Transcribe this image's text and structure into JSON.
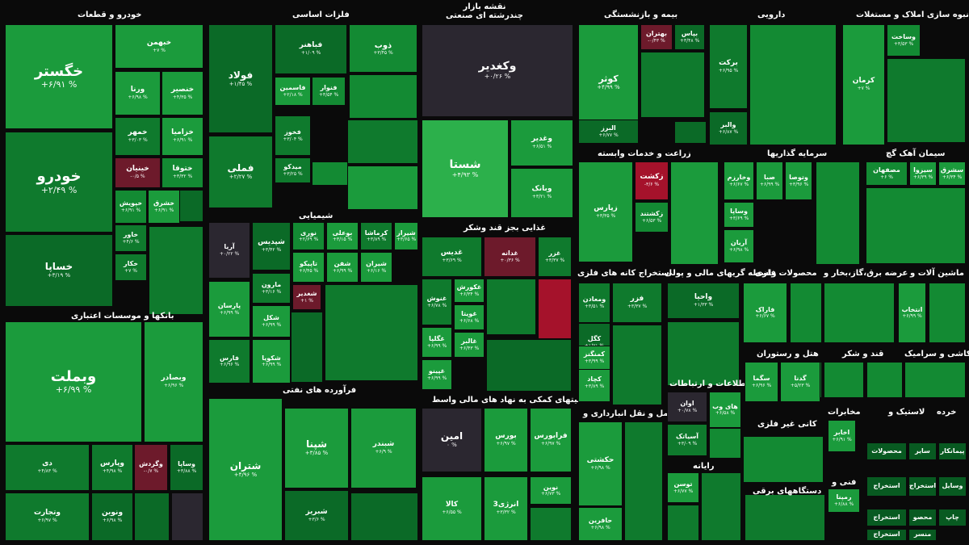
{
  "header": {
    "title": "نقشه بازار",
    "subtitle": "چندرشته ای صنعتی"
  },
  "sectors": {
    "auto": "خودرو و قطعات",
    "metals": "فلزات اساسی",
    "insurance": "بیمه و بازنشستگی",
    "pharma": "دارویی",
    "realestate": "انبوه سازی املاک و مستغلات",
    "agri": "زراعت و خدمات وابسته",
    "invest": "سرمایه گذاریها",
    "cement": "سیمان آهک گچ",
    "chemical": "شیمیایی",
    "food": "غذایی بجز قند وشکر",
    "mining": "استخراج کانه های فلزی",
    "finance": "واسطه گریهای مالی و پولی",
    "metalproducts": "محصولات فلزی",
    "power": "عرضه برق،گاز،بخار و",
    "machinery": "ماشین آلات و",
    "banks": "بانکها و موسسات اعتباری",
    "hotel": "هتل و رستوران",
    "sugar": "قند و شکر",
    "ceramic": "کاشی و سرامیک",
    "ict": "اطلاعات و ارتباطات",
    "refinery": "فرآورده های نفتی",
    "financeaux": "فعالیتهای کمکی به نهاد های مالی واسط",
    "transport": "حمل و نقل انبارداری و",
    "nonmetal": "کانی غیر فلزی",
    "computer": "رایانه",
    "electric": "دستگاههای برقی",
    "telecom": "مخابرات",
    "tire": "لاستیک و",
    "retail": "خرده",
    "tech": "فنی و"
  },
  "cells": {
    "khegostar": {
      "sym": "خگستر",
      "pct": "+۶/۹۱ %"
    },
    "khodro": {
      "sym": "خودرو",
      "pct": "+۲/۴۹ %"
    },
    "khsapa": {
      "sym": "خساپا",
      "pct": "+۳/۱۹ %"
    },
    "khbahman": {
      "sym": "خبهمن",
      "pct": "+۷ %"
    },
    "vrana": {
      "sym": "ورنا",
      "pct": "+۶/۹۸ %"
    },
    "khensir": {
      "sym": "خنصیر",
      "pct": "+۴/۳۵ %"
    },
    "khmehr": {
      "sym": "خمهر",
      "pct": "+۳/۰۳ %"
    },
    "khazamia": {
      "sym": "خزامیا",
      "pct": "+۶/۹۱ %"
    },
    "khinian": {
      "sym": "خینیان",
      "pct": "-۰/۵ %"
    },
    "khtoga": {
      "sym": "ختوقا",
      "pct": "+۳/۳۲ %"
    },
    "khpoyesh": {
      "sym": "خپویش",
      "pct": "+۶/۹۱ %"
    },
    "khsharq": {
      "sym": "خشرق",
      "pct": "+۶/۹۱ %"
    },
    "khavar": {
      "sym": "خاور",
      "pct": "+۴/۶ %"
    },
    "khkar": {
      "sym": "خکار",
      "pct": "+۷ %"
    },
    "vbmellat": {
      "sym": "وبملت",
      "pct": "+۶/۹۹ %"
    },
    "vbsader": {
      "sym": "وبصادر",
      "pct": "+۶/۹۶ %"
    },
    "dey": {
      "sym": "دی",
      "pct": "+۴/۸۳ %"
    },
    "vparis": {
      "sym": "وپارس",
      "pct": "+۴/۹۸ %"
    },
    "vgardesh": {
      "sym": "وگردش",
      "pct": "-۰/۷ %"
    },
    "vsapa": {
      "sym": "وساپا",
      "pct": "+۳/۸۸ %"
    },
    "vtejarat": {
      "sym": "وتجارت",
      "pct": "+۶/۹۷ %"
    },
    "vnovin": {
      "sym": "ونوین",
      "pct": "+۶/۹۸ %"
    },
    "foolad": {
      "sym": "فولاد",
      "pct": "+۱/۴۵ %"
    },
    "femli": {
      "sym": "فملی",
      "pct": "+۲/۲۷ %"
    },
    "fbahonar": {
      "sym": "فباهنر",
      "pct": "+۱/۰۹ %"
    },
    "zob": {
      "sym": "ذوب",
      "pct": "+۳/۴۵ %"
    },
    "fsamin": {
      "sym": "فاسمین",
      "pct": "+۲/۱۸ %"
    },
    "fnavar": {
      "sym": "فنوار",
      "pct": "+۳/۵۴ %"
    },
    "fkhoz": {
      "sym": "فخوز",
      "pct": "+۳/۰۴ %"
    },
    "fmidko": {
      "sym": "میدکو",
      "pct": "+۳/۲۵ %"
    },
    "vghadir": {
      "sym": "وکغدیر",
      "pct": "+۰/۲۶ %"
    },
    "shasta": {
      "sym": "شستا",
      "pct": "+۴/۹۳ %"
    },
    "vghadir2": {
      "sym": "وغدیر",
      "pct": "+۶/۵۱ %"
    },
    "vbank": {
      "sym": "وبانک",
      "pct": "+۳/۲۱ %"
    },
    "kowsar": {
      "sym": "کوثر",
      "pct": "+۴/۹۹ %"
    },
    "bahtaran": {
      "sym": "بهتران",
      "pct": "-۰/۴۳ %"
    },
    "bpas": {
      "sym": "بپاس",
      "pct": "+۳/۴۸ %"
    },
    "valborz": {
      "sym": "البرز",
      "pct": "+۶/۷۷ %"
    },
    "vsahab": {
      "sym": "وساخت",
      "pct": "+۳/۵۳ %"
    },
    "kerman": {
      "sym": "کرمان",
      "pct": "+۷ %"
    },
    "barkat": {
      "sym": "برکت",
      "pct": "+۶/۹۵ %"
    },
    "valbar": {
      "sym": "والبر",
      "pct": "+۶/۸۷ %"
    },
    "zagros": {
      "sym": "زپارس",
      "pct": "+۳/۳۵ %"
    },
    "zkesht": {
      "sym": "زکشت",
      "pct": "-۳/۶ %"
    },
    "zkeshtand": {
      "sym": "زکشتند",
      "pct": "+۶/۵۳ %"
    },
    "vkharazm": {
      "sym": "وخارزم",
      "pct": "+۶/۶۷ %"
    },
    "vsepa": {
      "sym": "صبا",
      "pct": "+۶/۹۹ %"
    },
    "vtosee": {
      "sym": "وتوصا",
      "pct": "+۳/۹۶ %"
    },
    "vsapa2": {
      "sym": "وساپا",
      "pct": "+۳/۶۹ %"
    },
    "arian": {
      "sym": "آریان",
      "pct": "+۶/۹۸ %"
    },
    "smashhad": {
      "sym": "سشرق",
      "pct": "+۶/۳۴ %"
    },
    "sbiza": {
      "sym": "سیزوا",
      "pct": "+۶/۳۹ %"
    },
    "sfahan": {
      "sym": "مصفهان",
      "pct": "+۶ %"
    },
    "arya": {
      "sym": "آریا",
      "pct": "+۰/۲۲ %"
    },
    "shbandar": {
      "sym": "شپدیس",
      "pct": "+۳/۴۲ %"
    },
    "nouri": {
      "sym": "نوری",
      "pct": "+۲/۶۹ %"
    },
    "bualiz": {
      "sym": "بوعلی",
      "pct": "+۳/۱۵ %"
    },
    "kermasha": {
      "sym": "کرماشا",
      "pct": "+۳/۸۹ %"
    },
    "shiraz": {
      "sym": "شیراز",
      "pct": "+۳/۶۵ %"
    },
    "paris": {
      "sym": "پارسان",
      "pct": "+۶/۹۹ %"
    },
    "marun": {
      "sym": "مارون",
      "pct": "+۳/۱۶ %"
    },
    "tapiko": {
      "sym": "تاپیکو",
      "pct": "+۶/۴۵ %"
    },
    "shafan": {
      "sym": "شفن",
      "pct": "+۶/۹۹ %"
    },
    "shiran": {
      "sym": "شیران",
      "pct": "+۶/۱۶ %"
    },
    "shkol": {
      "sym": "شکل",
      "pct": "+۶/۹۹ %"
    },
    "shghadir": {
      "sym": "شغدیر",
      "pct": "+۱ %"
    },
    "fars": {
      "sym": "فارس",
      "pct": "+۶/۹۶ %"
    },
    "shekoba": {
      "sym": "شکویا",
      "pct": "+۶/۹۹ %"
    },
    "ghadis": {
      "sym": "غدیس",
      "pct": "+۳/۶۹ %"
    },
    "ghdane": {
      "sym": "غدانه",
      "pct": "+۰/۳۶ %"
    },
    "ghazar": {
      "sym": "غزر",
      "pct": "+۳/۳۷ %"
    },
    "ghnosh": {
      "sym": "غنوش",
      "pct": "+۶/۷۸ %"
    },
    "ghkoresh": {
      "sym": "غکورش",
      "pct": "+۶/۳۴ %"
    },
    "ghvita": {
      "sym": "غویتا",
      "pct": "+۶/۶۸ %"
    },
    "ghalbar": {
      "sym": "غالبر",
      "pct": "+۶/۴۳ %"
    },
    "ghgelia": {
      "sym": "غگلپا",
      "pct": "+۶/۹۹ %"
    },
    "gina": {
      "sym": "غپینو",
      "pct": "+۶/۹۹ %"
    },
    "maadan": {
      "sym": "ومعادن",
      "pct": "+۳/۵۱ %"
    },
    "fazar": {
      "sym": "فزر",
      "pct": "+۳/۳۷ %"
    },
    "kgol": {
      "sym": "کگل",
      "pct": "+۱/۷۱ %"
    },
    "kchadar": {
      "sym": "کچاد",
      "pct": "+۳/۸۹ %"
    },
    "kmangaz": {
      "sym": "کمنگنز",
      "pct": "+۳/۹۹ %"
    },
    "vahiya": {
      "sym": "واحیا",
      "pct": "+۱/۳۳ %"
    },
    "farak": {
      "sym": "فاراک",
      "pct": "+۶/۶۷ %"
    },
    "entekhab": {
      "sym": "انتخاب",
      "pct": "+۶/۹۹ %"
    },
    "kaghe": {
      "sym": "سگما",
      "pct": "+۶/۹۶ %"
    },
    "ghedana": {
      "sym": "گدنا",
      "pct": "+۵/۲۳ %"
    },
    "avan": {
      "sym": "اوان",
      "pct": "+۰/۷۸ %"
    },
    "haywb": {
      "sym": "های وب",
      "pct": "+۶/۵۸ %"
    },
    "asiatek": {
      "sym": "آسیاتک",
      "pct": "+۳/۰۹ %"
    },
    "shepna": {
      "sym": "شپنا",
      "pct": "+۳/۸۵ %"
    },
    "shbandar2": {
      "sym": "شبندر",
      "pct": "+۶/۹ %"
    },
    "shtran": {
      "sym": "شتران",
      "pct": "+۴/۹۶ %"
    },
    "shbriz": {
      "sym": "شبریز",
      "pct": "+۳/۶ %"
    },
    "amin": {
      "sym": "امین",
      "pct": "۰ %"
    },
    "bourse": {
      "sym": "بورس",
      "pct": "+۶/۹۷ %"
    },
    "farabourse": {
      "sym": "فرابورس",
      "pct": "+۶/۹۷ %"
    },
    "kala": {
      "sym": "کالا",
      "pct": "+۶/۵۵ %"
    },
    "energy3": {
      "sym": "انرژی3",
      "pct": "+۳/۳۲ %"
    },
    "novin": {
      "sym": "نوین",
      "pct": "+۶/۷۳ %"
    },
    "hkashti": {
      "sym": "حکشتی",
      "pct": "+۶/۹۸ %"
    },
    "hafarin": {
      "sym": "حافرین",
      "pct": "+۶/۹۸ %"
    },
    "toosan": {
      "sym": "توسن",
      "pct": "+۶/۷۷ %"
    },
    "rampna": {
      "sym": "رمپنا",
      "pct": "+۶/۸۸ %"
    },
    "akhabar": {
      "sym": "اخابر",
      "pct": "+۶/۹۱ %"
    },
    "mahsoolat": {
      "sym": "محصولات",
      "pct": ""
    },
    "sayer": {
      "sym": "سایر",
      "pct": ""
    },
    "pyamnkar": {
      "sym": "پیمانکار",
      "pct": ""
    },
    "estekhraj1": {
      "sym": "استخراج",
      "pct": ""
    },
    "estekhraj2": {
      "sym": "استخراج",
      "pct": ""
    },
    "estekhraj3": {
      "sym": "استخراج",
      "pct": ""
    },
    "vasayel": {
      "sym": "وسایل",
      "pct": ""
    },
    "estekhraj4": {
      "sym": "استخراج",
      "pct": ""
    },
    "chap": {
      "sym": "چاپ",
      "pct": ""
    },
    "mahsool2": {
      "sym": "محصو",
      "pct": ""
    },
    "monsar": {
      "sym": "منسر",
      "pct": ""
    }
  },
  "colors": {
    "bg": "#0a0a0a",
    "up_strong": "#1b9b3c",
    "down": "#a5122b",
    "neutral": "#2b2730"
  }
}
